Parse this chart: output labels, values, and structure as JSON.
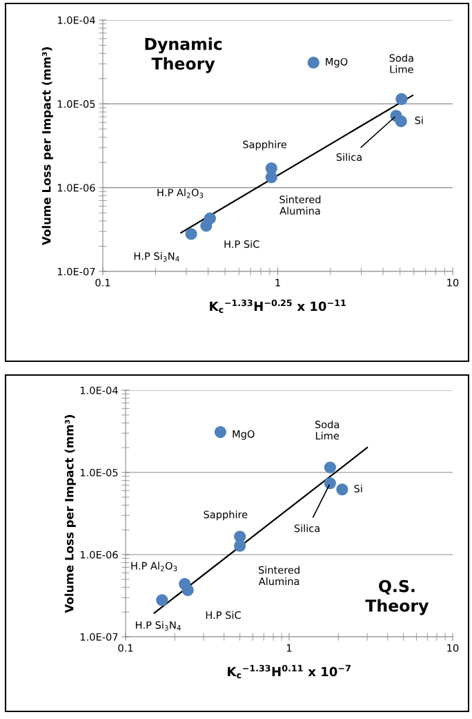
{
  "chart_data": [
    {
      "type": "scatter",
      "title": "Dynamic\nTheory",
      "xlabel": "K$_{c}$$^{−1.33}$H$^{−0.25}$ x 10$^{−11}$",
      "ylabel": "Volume Loss per Impact (mm³)",
      "log": "xy",
      "grid": "y",
      "xlim": [
        0.1,
        10
      ],
      "xticks": [
        0.1,
        1,
        10
      ],
      "ylim": [
        1e-07,
        0.0001
      ],
      "yticks": [
        {
          "value": 1e-07,
          "label": "1.0E-07"
        },
        {
          "value": 1e-06,
          "label": "1.0E-06"
        },
        {
          "value": 1e-05,
          "label": "1.0E-05"
        },
        {
          "value": 0.0001,
          "label": "1.0E-04"
        }
      ],
      "series": [
        {
          "color": "#4f81bd",
          "marker": "circle",
          "x": [
            1.6,
            5.1,
            4.75,
            5.07,
            0.92,
            0.92,
            0.41,
            0.39,
            0.32
          ],
          "values": [
            3.1e-05,
            1.14e-05,
            7.2e-06,
            6.2e-06,
            1.7e-06,
            1.33e-06,
            4.3e-07,
            3.5e-07,
            2.8e-07
          ]
        },
        {
          "type": "line",
          "color": "#000000",
          "x": [
            0.28,
            5.9
          ],
          "values": [
            2.9e-07,
            1.26e-05
          ]
        }
      ],
      "annotations": [
        {
          "text": "MgO",
          "x": 1.6,
          "y": 3.1e-05
        },
        {
          "text": "Soda\nLime",
          "x": 5.1,
          "y": 1.14e-05
        },
        {
          "text": "Silica",
          "x": 4.75,
          "y": 7.2e-06
        },
        {
          "text": "Si",
          "x": 5.07,
          "y": 6.2e-06
        },
        {
          "text": "Sapphire",
          "x": 0.92,
          "y": 1.7e-06
        },
        {
          "text": "Sintered\nAlumina",
          "x": 0.92,
          "y": 1.33e-06
        },
        {
          "text": "H.P Al$_{2}$O$_{3}$",
          "x": 0.41,
          "y": 4.3e-07
        },
        {
          "text": "H.P SiC",
          "x": 0.39,
          "y": 3.5e-07
        },
        {
          "text": "H.P Si$_{3}$N$_{4}$",
          "x": 0.32,
          "y": 2.8e-07
        }
      ]
    },
    {
      "type": "scatter",
      "title": "Q.S.\nTheory",
      "xlabel": "K$_{c}$$^{−1.33}$H$^{0.11}$ x 10$^{−7}$",
      "ylabel": "Volume Loss per Impact (mm³)",
      "log": "xy",
      "grid": "y",
      "xlim": [
        0.1,
        10
      ],
      "xticks": [
        0.1,
        1,
        10
      ],
      "ylim": [
        1e-07,
        0.0001
      ],
      "yticks": [
        {
          "value": 1e-07,
          "label": "1.0E-07"
        },
        {
          "value": 1e-06,
          "label": "1.0E-06"
        },
        {
          "value": 1e-05,
          "label": "1.0E-05"
        },
        {
          "value": 0.0001,
          "label": "1.0E-04"
        }
      ],
      "series": [
        {
          "color": "#4f81bd",
          "marker": "circle",
          "x": [
            0.38,
            1.78,
            1.78,
            2.11,
            0.5,
            0.5,
            0.23,
            0.24,
            0.167
          ],
          "values": [
            3.1e-05,
            1.15e-05,
            7.4e-06,
            6.2e-06,
            1.66e-06,
            1.28e-06,
            4.4e-07,
            3.7e-07,
            2.8e-07
          ]
        },
        {
          "type": "line",
          "color": "#000000",
          "x": [
            0.15,
            3.0
          ],
          "values": [
            1.95e-07,
            2e-05
          ]
        }
      ],
      "annotations": [
        {
          "text": "MgO",
          "x": 0.38,
          "y": 3.1e-05
        },
        {
          "text": "Soda\nLime",
          "x": 1.78,
          "y": 1.15e-05
        },
        {
          "text": "Silica",
          "x": 1.78,
          "y": 7.4e-06
        },
        {
          "text": "Si",
          "x": 2.11,
          "y": 6.2e-06
        },
        {
          "text": "Sapphire",
          "x": 0.5,
          "y": 1.66e-06
        },
        {
          "text": "Sintered\nAlumina",
          "x": 0.5,
          "y": 1.28e-06
        },
        {
          "text": "H.P Al$_{2}$O$_{3}$",
          "x": 0.23,
          "y": 4.4e-07
        },
        {
          "text": "H.P SiC",
          "x": 0.24,
          "y": 3.7e-07
        },
        {
          "text": "H.P Si$_{3}$N$_{4}$",
          "x": 0.167,
          "y": 2.8e-07
        }
      ]
    }
  ]
}
